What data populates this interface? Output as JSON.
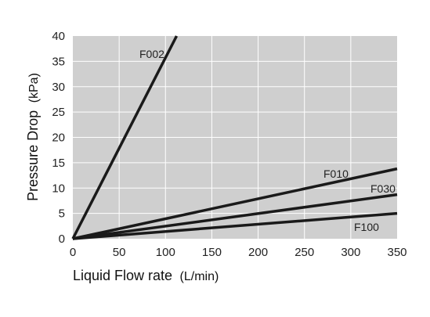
{
  "chart_data": {
    "type": "line",
    "xlabel": "Liquid Flow rate",
    "xlabel_unit": "(L/min)",
    "ylabel": "Pressure Drop",
    "ylabel_unit": "(kPa)",
    "xlim": [
      0,
      350
    ],
    "ylim": [
      0,
      40
    ],
    "xticks": [
      0,
      50,
      100,
      150,
      200,
      250,
      300,
      350
    ],
    "yticks": [
      0,
      5,
      10,
      15,
      20,
      25,
      30,
      35,
      40
    ],
    "grid": true,
    "plot_background": "#cfcfcf",
    "grid_color": "#ffffff",
    "line_color": "#1a1a1a",
    "series": [
      {
        "name": "F002",
        "x": [
          0,
          112
        ],
        "y": [
          0,
          40
        ]
      },
      {
        "name": "F010",
        "x": [
          0,
          350
        ],
        "y": [
          0,
          13.8
        ]
      },
      {
        "name": "F030",
        "x": [
          0,
          350
        ],
        "y": [
          0,
          8.7
        ]
      },
      {
        "name": "F100",
        "x": [
          0,
          350
        ],
        "y": [
          0,
          5.0
        ]
      }
    ]
  }
}
